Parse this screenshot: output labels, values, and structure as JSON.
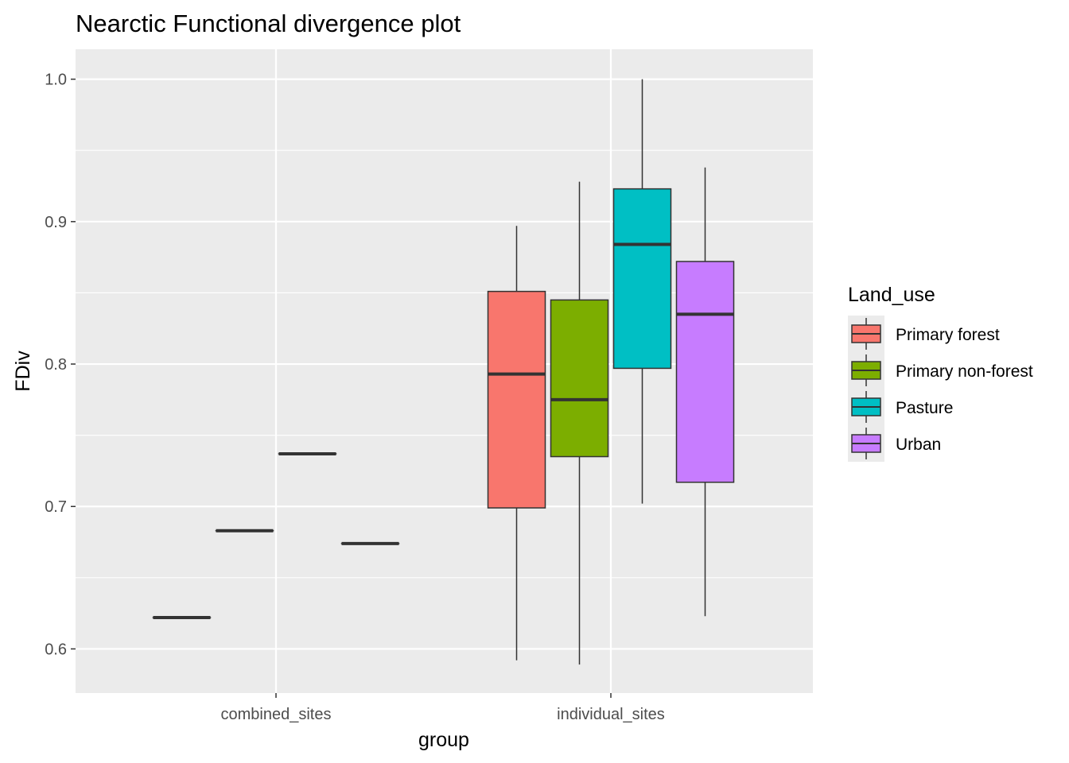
{
  "chart_data": {
    "type": "boxplot",
    "title": "Nearctic Functional divergence plot",
    "xlabel": "group",
    "ylabel": "FDiv",
    "categories": [
      "combined_sites",
      "individual_sites"
    ],
    "ylim": [
      0.569,
      1.021
    ],
    "yticks": [
      0.6,
      0.7,
      0.8,
      0.9,
      1.0
    ],
    "ytick_labels": [
      "0.6",
      "0.7",
      "0.8",
      "0.9",
      "1.0"
    ],
    "grid": true,
    "legend": {
      "title": "Land_use",
      "placement": "right"
    },
    "series": [
      {
        "name": "Primary forest",
        "color": "#F8766D",
        "boxes": [
          {
            "category": "combined_sites",
            "min": 0.622,
            "q1": 0.622,
            "median": 0.622,
            "q3": 0.622,
            "max": 0.622
          },
          {
            "category": "individual_sites",
            "min": 0.592,
            "q1": 0.699,
            "median": 0.793,
            "q3": 0.851,
            "max": 0.897
          }
        ]
      },
      {
        "name": "Primary non-forest",
        "color": "#7CAE00",
        "boxes": [
          {
            "category": "combined_sites",
            "min": 0.683,
            "q1": 0.683,
            "median": 0.683,
            "q3": 0.683,
            "max": 0.683
          },
          {
            "category": "individual_sites",
            "min": 0.589,
            "q1": 0.735,
            "median": 0.775,
            "q3": 0.845,
            "max": 0.928
          }
        ]
      },
      {
        "name": "Pasture",
        "color": "#00BFC4",
        "boxes": [
          {
            "category": "combined_sites",
            "min": 0.737,
            "q1": 0.737,
            "median": 0.737,
            "q3": 0.737,
            "max": 0.737
          },
          {
            "category": "individual_sites",
            "min": 0.702,
            "q1": 0.797,
            "median": 0.884,
            "q3": 0.923,
            "max": 1.0
          }
        ]
      },
      {
        "name": "Urban",
        "color": "#C77CFF",
        "boxes": [
          {
            "category": "combined_sites",
            "min": 0.674,
            "q1": 0.674,
            "median": 0.674,
            "q3": 0.674,
            "max": 0.674
          },
          {
            "category": "individual_sites",
            "min": 0.623,
            "q1": 0.717,
            "median": 0.835,
            "q3": 0.872,
            "max": 0.938
          }
        ]
      }
    ]
  },
  "colors": {
    "panel_background": "#EBEBEB",
    "grid_major": "#FFFFFF",
    "box_outline": "#333333"
  }
}
